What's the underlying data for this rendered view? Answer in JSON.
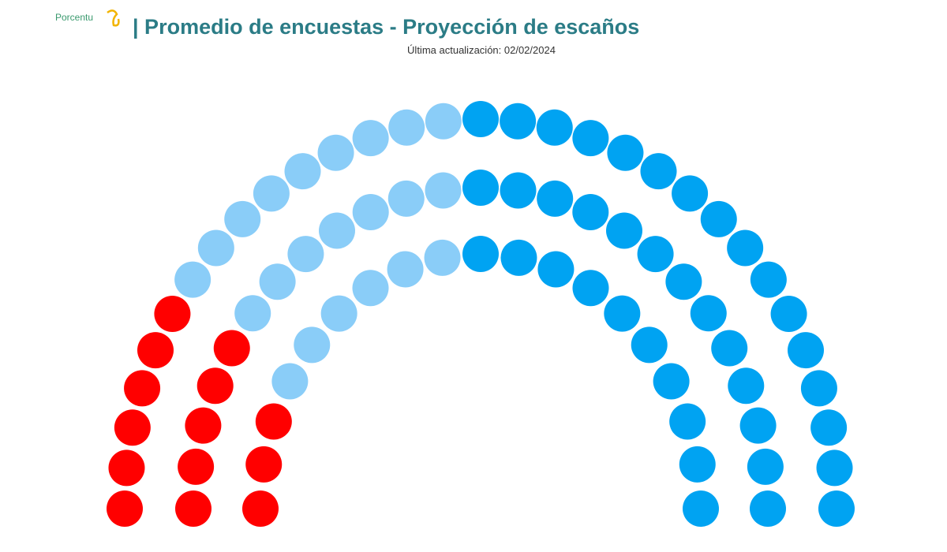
{
  "logo": "Porcentu",
  "chart_data": {
    "type": "parliament",
    "title": "| Promedio de encuestas - Proyección de escaños",
    "subtitle": "Última actualización: 02/02/2024",
    "series": [
      {
        "color": "#ff0000",
        "value": 14
      },
      {
        "color": "#8acdf8",
        "value": 22
      },
      {
        "color": "#00a3f2",
        "value": 39
      }
    ]
  }
}
